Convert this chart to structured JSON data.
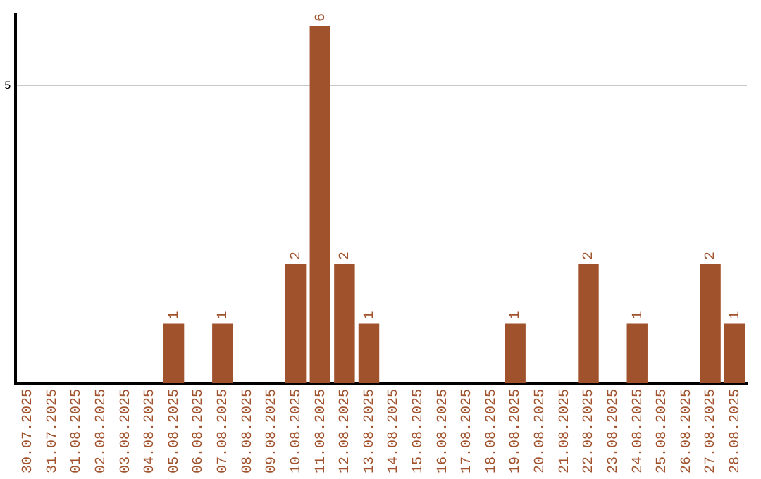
{
  "chart_data": {
    "type": "bar",
    "categories": [
      "30.07.2025",
      "31.07.2025",
      "01.08.2025",
      "02.08.2025",
      "03.08.2025",
      "04.08.2025",
      "05.08.2025",
      "06.08.2025",
      "07.08.2025",
      "08.08.2025",
      "09.08.2025",
      "10.08.2025",
      "11.08.2025",
      "12.08.2025",
      "13.08.2025",
      "14.08.2025",
      "15.08.2025",
      "16.08.2025",
      "17.08.2025",
      "18.08.2025",
      "19.08.2025",
      "20.08.2025",
      "21.08.2025",
      "22.08.2025",
      "23.08.2025",
      "24.08.2025",
      "25.08.2025",
      "26.08.2025",
      "27.08.2025",
      "28.08.2025"
    ],
    "values": [
      0,
      0,
      0,
      0,
      0,
      0,
      1,
      0,
      1,
      0,
      0,
      2,
      6,
      2,
      1,
      0,
      0,
      0,
      0,
      0,
      1,
      0,
      0,
      2,
      0,
      1,
      0,
      0,
      2,
      1
    ],
    "value_labels": [
      null,
      null,
      null,
      null,
      null,
      null,
      "1",
      null,
      "1",
      null,
      null,
      "2",
      "6",
      "2",
      "1",
      null,
      null,
      null,
      null,
      null,
      "1",
      null,
      null,
      "2",
      null,
      "1",
      null,
      null,
      "2",
      "1"
    ],
    "color": "#a0522d",
    "ylim": [
      0,
      6.2
    ],
    "yticks": [
      5
    ],
    "grid": "y",
    "legend": false
  }
}
